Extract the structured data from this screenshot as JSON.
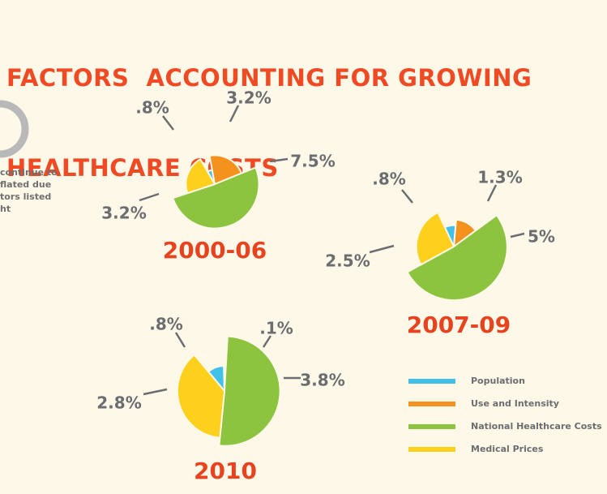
{
  "title_lines": [
    "FACTORS  ACCOUNTING FOR GROWING",
    "HEALTHCARE COSTS"
  ],
  "side_note_lines": [
    "continue to",
    "flated due",
    "tors listed",
    "ht"
  ],
  "colors": {
    "background": "#fdf8e8",
    "title": "#f04a24",
    "label": "#6c6d70",
    "Population": "#41c0ea",
    "Use and Intensity": "#f5921e",
    "National Healthcare Costs": "#8cc43f",
    "Medical Prices": "#fcd01b"
  },
  "chart_data": {
    "type": "pie",
    "title": "FACTORS  ACCOUNTING FOR GROWING HEALTHCARE COSTS",
    "legend": {
      "position": "bottom-right",
      "entries": [
        "Population",
        "Use and Intensity",
        "National Healthcare Costs",
        "Medical Prices"
      ]
    },
    "categories": [
      "Population",
      "Use and Intensity",
      "National Healthcare Costs",
      "Medical Prices"
    ],
    "charts": [
      {
        "period": "2000-06",
        "values": [
          0.8,
          3.2,
          7.5,
          3.2
        ],
        "labels": [
          ".8%",
          "3.2%",
          "7.5%",
          "3.2%"
        ]
      },
      {
        "period": "2007-09",
        "values": [
          0.8,
          1.3,
          5,
          2.5
        ],
        "labels": [
          ".8%",
          "1.3%",
          "5%",
          "2.5%"
        ]
      },
      {
        "period": "2010",
        "values": [
          0.8,
          0.1,
          3.8,
          2.8
        ],
        "labels": [
          ".8%",
          ".1%",
          "3.8%",
          "2.8%"
        ]
      }
    ]
  }
}
